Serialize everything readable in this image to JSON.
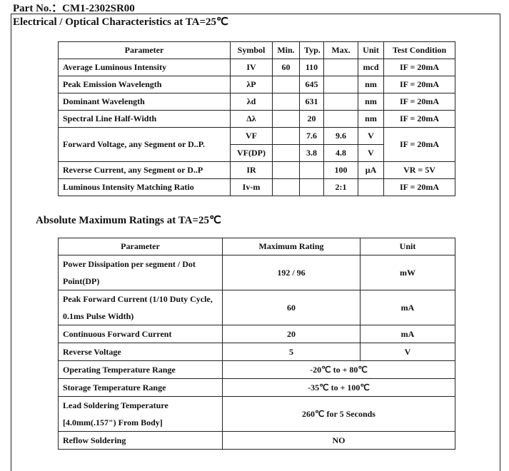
{
  "part_no": "Part No.：CM1-2302SR00",
  "electrical": {
    "title": "Electrical / Optical Characteristics at TA=25℃",
    "headers": [
      "Parameter",
      "Symbol",
      "Min.",
      "Typ.",
      "Max.",
      "Unit",
      "Test Condition"
    ],
    "rows": [
      [
        "Average Luminous Intensity",
        "IV",
        "60",
        "110",
        "",
        "mcd",
        "IF = 20mA"
      ],
      [
        "Peak Emission Wavelength",
        "λP",
        "",
        "645",
        "",
        "nm",
        "IF = 20mA"
      ],
      [
        "Dominant Wavelength",
        "λd",
        "",
        "631",
        "",
        "nm",
        "IF = 20mA"
      ],
      [
        "Spectral Line Half-Width",
        "Δλ",
        "",
        "20",
        "",
        "nm",
        "IF = 20mA"
      ]
    ],
    "forward": {
      "parameter": "Forward Voltage, any Segment or D..P.",
      "condition": "IF = 20mA",
      "rows": [
        [
          "VF",
          "",
          "7.6",
          "9.6",
          "V"
        ],
        [
          "VF(DP)",
          "",
          "3.8",
          "4.8",
          "V"
        ]
      ]
    },
    "rows2": [
      [
        "Reverse Current, any   Segment or D..P",
        "IR",
        "",
        "",
        "100",
        "μA",
        "VR = 5V"
      ],
      [
        "Luminous Intensity Matching Ratio",
        "Iv-m",
        "",
        "",
        "2:1",
        "",
        "IF = 20mA"
      ]
    ]
  },
  "absolute": {
    "title": "Absolute Maximum Ratings at TA=25℃",
    "headers": [
      "Parameter",
      "Maximum Rating",
      "Unit"
    ],
    "rows": [
      [
        "Power Dissipation per segment / Dot Point(DP)",
        "192 / 96",
        "mW"
      ],
      [
        "Peak Forward Current (1/10 Duty Cycle, 0.1ms Pulse Width)",
        "60",
        "mA"
      ],
      [
        "Continuous Forward Current",
        "20",
        "mA"
      ],
      [
        "Reverse Voltage",
        "5",
        "V"
      ]
    ],
    "rows_span": [
      [
        "Operating Temperature Range",
        "-20℃  to + 80℃"
      ],
      [
        "Storage Temperature Range",
        "-35℃  to + 100℃"
      ],
      [
        "Lead Soldering Temperature [4.0mm(.157\") From Body]",
        "260℃  for 5 Seconds"
      ],
      [
        "Reflow Soldering",
        "NO"
      ]
    ]
  }
}
